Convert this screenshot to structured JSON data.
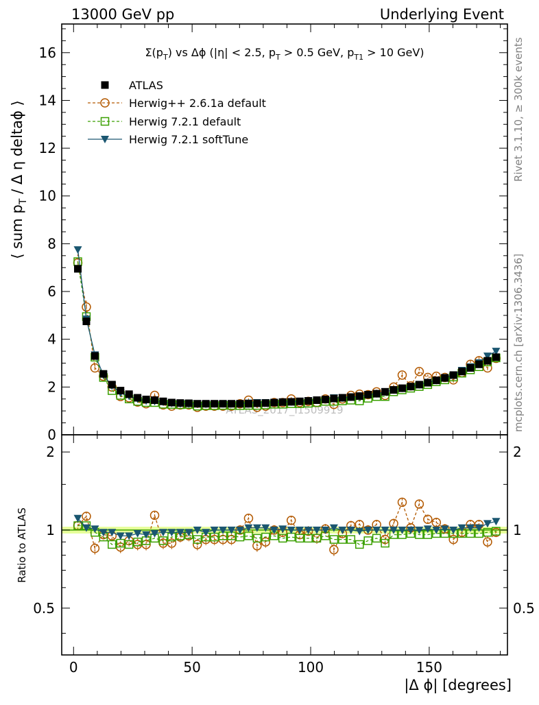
{
  "header": {
    "left": "13000 GeV pp",
    "right": "Underlying Event"
  },
  "side_labels": {
    "rivet": "Rivet 3.1.10, ≥ 300k events",
    "mcplots": "mcplots.cern.ch [arXiv:1306.3436]"
  },
  "watermark": "ATLAS_2017_I1509919",
  "colors": {
    "atlas": "#000000",
    "herwigpp": "#b35900",
    "herwig721": "#3a9f00",
    "softtune": "#1a5670",
    "ratio_band": "#e6ff99"
  },
  "chart_data": [
    {
      "type": "line",
      "title": "Σ(p_T) vs Δϕ (|η| < 2.5, p_T > 0.5 GeV, p_T1 > 10 GeV)",
      "title_parts": {
        "a": "Σ(p",
        "a_sub": "T",
        "b": ") vs Δϕ (|η| < 2.5, p",
        "b_sub": "T",
        "c": " > 0.5 GeV, p",
        "c_sub": "T1",
        "d": " > 10 GeV)"
      },
      "ylabel": "⟨ sum p_T / Δ η deltaϕ ⟩",
      "ylabel_parts": {
        "a": "⟨ sum p",
        "sub": "T",
        "b": " / Δ η deltaϕ ⟩"
      },
      "xlim": [
        -5,
        183
      ],
      "ylim": [
        0,
        17.2
      ],
      "yticks": [
        "0",
        "2",
        "4",
        "6",
        "8",
        "10",
        "12",
        "14",
        "16"
      ],
      "legend_position": "top-left",
      "series": [
        {
          "name": "ATLAS",
          "key": "atlas",
          "marker": "square-filled"
        },
        {
          "name": "Herwig++ 2.6.1a default",
          "key": "herwigpp",
          "marker": "circle-open",
          "dashed": true
        },
        {
          "name": "Herwig 7.2.1 default",
          "key": "herwig721",
          "marker": "square-open",
          "dashed": true
        },
        {
          "name": "Herwig 7.2.1 softTune",
          "key": "softtune",
          "marker": "triangle-down-filled"
        }
      ],
      "x": [
        1.8,
        5.4,
        9.0,
        12.6,
        16.2,
        19.8,
        23.4,
        27.0,
        30.6,
        34.2,
        37.8,
        41.4,
        45.0,
        48.6,
        52.2,
        55.8,
        59.4,
        63.0,
        66.6,
        70.2,
        73.8,
        77.4,
        81.0,
        84.6,
        88.2,
        91.8,
        95.4,
        99.0,
        102.6,
        106.2,
        109.8,
        113.4,
        117.0,
        120.6,
        124.2,
        127.8,
        131.4,
        135.0,
        138.6,
        142.2,
        145.8,
        149.4,
        153.0,
        156.6,
        160.2,
        163.8,
        167.4,
        171.0,
        174.6,
        178.2
      ],
      "atlas": [
        6.95,
        4.75,
        3.3,
        2.55,
        2.1,
        1.85,
        1.7,
        1.55,
        1.48,
        1.45,
        1.4,
        1.35,
        1.33,
        1.32,
        1.3,
        1.3,
        1.3,
        1.3,
        1.3,
        1.3,
        1.3,
        1.32,
        1.33,
        1.35,
        1.37,
        1.38,
        1.4,
        1.42,
        1.45,
        1.48,
        1.52,
        1.55,
        1.58,
        1.62,
        1.68,
        1.72,
        1.8,
        1.88,
        1.95,
        2.02,
        2.1,
        2.18,
        2.28,
        2.38,
        2.5,
        2.65,
        2.8,
        2.95,
        3.1,
        3.25
      ],
      "herwigpp": [
        7.2,
        5.35,
        2.8,
        2.45,
        2.0,
        1.6,
        1.55,
        1.37,
        1.3,
        1.65,
        1.25,
        1.2,
        1.25,
        1.25,
        1.15,
        1.2,
        1.2,
        1.2,
        1.2,
        1.3,
        1.45,
        1.15,
        1.2,
        1.35,
        1.35,
        1.5,
        1.35,
        1.4,
        1.35,
        1.5,
        1.27,
        1.5,
        1.65,
        1.7,
        1.68,
        1.8,
        1.65,
        2.0,
        2.5,
        2.05,
        2.65,
        2.4,
        2.45,
        2.4,
        2.3,
        2.6,
        2.95,
        3.1,
        2.8,
        3.2
      ],
      "herwig721": [
        7.25,
        4.95,
        3.25,
        2.4,
        1.85,
        1.65,
        1.5,
        1.4,
        1.35,
        1.35,
        1.28,
        1.27,
        1.26,
        1.27,
        1.2,
        1.22,
        1.22,
        1.23,
        1.23,
        1.22,
        1.23,
        1.23,
        1.25,
        1.28,
        1.28,
        1.3,
        1.3,
        1.32,
        1.35,
        1.4,
        1.4,
        1.42,
        1.45,
        1.42,
        1.53,
        1.6,
        1.6,
        1.8,
        1.88,
        1.95,
        2.02,
        2.1,
        2.22,
        2.3,
        2.42,
        2.58,
        2.72,
        2.85,
        3.05,
        3.22
      ],
      "softtune": [
        7.75,
        4.85,
        3.35,
        2.5,
        2.05,
        1.75,
        1.62,
        1.5,
        1.42,
        1.4,
        1.37,
        1.32,
        1.3,
        1.3,
        1.3,
        1.28,
        1.3,
        1.3,
        1.3,
        1.3,
        1.33,
        1.35,
        1.35,
        1.35,
        1.38,
        1.38,
        1.4,
        1.42,
        1.45,
        1.48,
        1.55,
        1.55,
        1.58,
        1.6,
        1.68,
        1.72,
        1.8,
        1.88,
        1.95,
        2.02,
        2.1,
        2.2,
        2.28,
        2.4,
        2.5,
        2.7,
        2.85,
        3.02,
        3.3,
        3.5
      ]
    },
    {
      "type": "line",
      "xlabel": "|Δ ϕ| [degrees]",
      "ylabel": "Ratio to ATLAS",
      "xlim": [
        -5,
        183
      ],
      "ylim": [
        0.33,
        2.33
      ],
      "xticks": [
        0,
        50,
        100,
        150
      ],
      "yticks_labeled": [
        "0.5",
        "1",
        "2"
      ],
      "band": [
        0.97,
        1.03
      ],
      "herwigpp": [
        1.04,
        1.13,
        0.85,
        0.96,
        0.95,
        0.86,
        0.91,
        0.88,
        0.88,
        1.14,
        0.89,
        0.89,
        0.94,
        0.95,
        0.88,
        0.92,
        0.92,
        0.92,
        0.92,
        1.0,
        1.11,
        0.87,
        0.9,
        1.0,
        0.98,
        1.09,
        0.96,
        0.99,
        0.93,
        1.01,
        0.84,
        0.97,
        1.04,
        1.05,
        1.0,
        1.05,
        0.92,
        1.06,
        1.28,
        1.02,
        1.26,
        1.1,
        1.07,
        1.01,
        0.92,
        0.98,
        1.05,
        1.05,
        0.9,
        0.98
      ],
      "herwig721": [
        1.04,
        1.04,
        0.98,
        0.94,
        0.88,
        0.89,
        0.88,
        0.9,
        0.91,
        0.93,
        0.91,
        0.94,
        0.95,
        0.96,
        0.92,
        0.94,
        0.94,
        0.95,
        0.95,
        0.94,
        0.95,
        0.93,
        0.94,
        0.95,
        0.93,
        0.94,
        0.93,
        0.93,
        0.93,
        0.95,
        0.92,
        0.92,
        0.92,
        0.88,
        0.91,
        0.93,
        0.89,
        0.96,
        0.96,
        0.97,
        0.96,
        0.96,
        0.97,
        0.97,
        0.97,
        0.97,
        0.97,
        0.97,
        0.98,
        0.99
      ],
      "softtune": [
        1.11,
        1.02,
        1.01,
        0.98,
        0.98,
        0.95,
        0.95,
        0.97,
        0.96,
        0.97,
        0.98,
        0.98,
        0.98,
        0.98,
        1.0,
        0.98,
        1.0,
        1.0,
        1.0,
        1.0,
        1.02,
        1.02,
        1.02,
        1.0,
        1.01,
        1.0,
        1.0,
        1.0,
        1.0,
        1.0,
        1.02,
        1.0,
        1.0,
        0.99,
        1.0,
        1.0,
        1.0,
        1.0,
        1.0,
        1.0,
        1.0,
        1.01,
        1.0,
        1.01,
        1.0,
        1.02,
        1.02,
        1.02,
        1.06,
        1.08
      ]
    }
  ]
}
